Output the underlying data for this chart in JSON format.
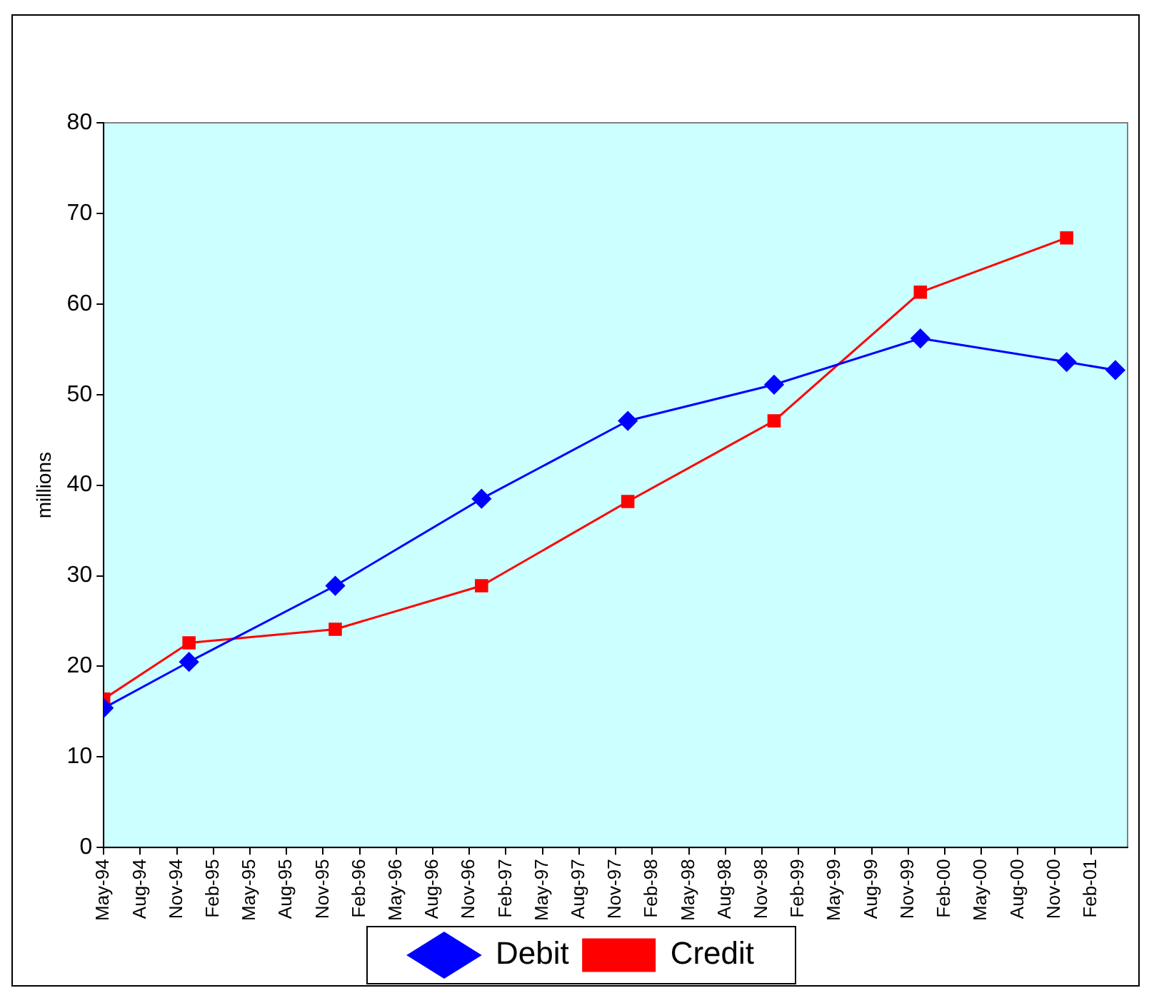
{
  "chart_data": {
    "type": "line",
    "ylabel": "millions",
    "x": [
      "1994-05",
      "1994-12",
      "1995-12",
      "1996-12",
      "1997-12",
      "1998-12",
      "1999-12",
      "2000-12",
      "2001-04"
    ],
    "series": [
      {
        "name": "Debit",
        "color": "#0000ff",
        "marker": "diamond",
        "values": [
          15.4,
          20.5,
          28.9,
          38.5,
          47.1,
          51.1,
          56.2,
          53.6,
          52.7
        ]
      },
      {
        "name": "Credit",
        "color": "#ff0000",
        "marker": "square",
        "x": [
          "1994-05",
          "1994-12",
          "1995-12",
          "1996-12",
          "1997-12",
          "1998-12",
          "1999-12",
          "2000-12"
        ],
        "values": [
          16.4,
          22.6,
          24.1,
          28.9,
          38.2,
          47.1,
          61.3,
          67.3
        ]
      }
    ],
    "xlim": [
      "1994-05",
      "2001-05"
    ],
    "xticks": [
      {
        "value": "1994-05",
        "label": "May-94"
      },
      {
        "value": "1994-08",
        "label": "Aug-94"
      },
      {
        "value": "1994-11",
        "label": "Nov-94"
      },
      {
        "value": "1995-02",
        "label": "Feb-95"
      },
      {
        "value": "1995-05",
        "label": "May-95"
      },
      {
        "value": "1995-08",
        "label": "Aug-95"
      },
      {
        "value": "1995-11",
        "label": "Nov-95"
      },
      {
        "value": "1996-02",
        "label": "Feb-96"
      },
      {
        "value": "1996-05",
        "label": "May-96"
      },
      {
        "value": "1996-08",
        "label": "Aug-96"
      },
      {
        "value": "1996-11",
        "label": "Nov-96"
      },
      {
        "value": "1997-02",
        "label": "Feb-97"
      },
      {
        "value": "1997-05",
        "label": "May-97"
      },
      {
        "value": "1997-08",
        "label": "Aug-97"
      },
      {
        "value": "1997-11",
        "label": "Nov-97"
      },
      {
        "value": "1998-02",
        "label": "Feb-98"
      },
      {
        "value": "1998-05",
        "label": "May-98"
      },
      {
        "value": "1998-08",
        "label": "Aug-98"
      },
      {
        "value": "1998-11",
        "label": "Nov-98"
      },
      {
        "value": "1999-02",
        "label": "Feb-99"
      },
      {
        "value": "1999-05",
        "label": "May-99"
      },
      {
        "value": "1999-08",
        "label": "Aug-99"
      },
      {
        "value": "1999-11",
        "label": "Nov-99"
      },
      {
        "value": "2000-02",
        "label": "Feb-00"
      },
      {
        "value": "2000-05",
        "label": "May-00"
      },
      {
        "value": "2000-08",
        "label": "Aug-00"
      },
      {
        "value": "2000-11",
        "label": "Nov-00"
      },
      {
        "value": "2001-02",
        "label": "Feb-01"
      }
    ],
    "ylim": [
      0,
      80
    ],
    "yticks": [
      0,
      10,
      20,
      30,
      40,
      50,
      60,
      70,
      80
    ],
    "grid": false,
    "legend": "bottom",
    "line_style": "solid"
  }
}
